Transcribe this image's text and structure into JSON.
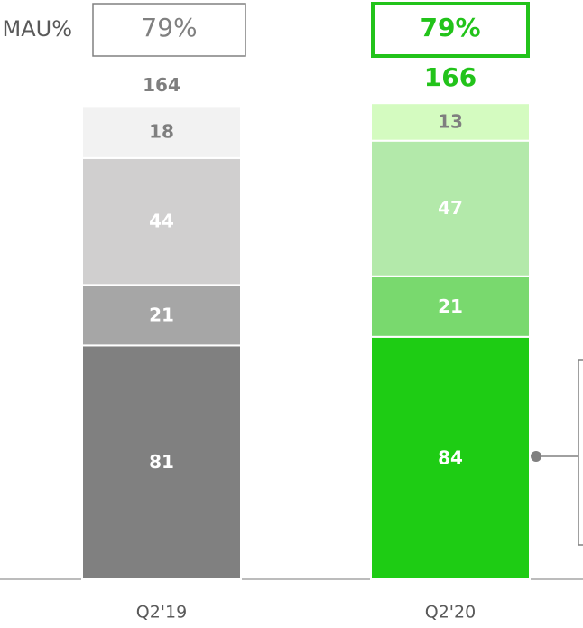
{
  "chart_data": {
    "type": "stacked_bar",
    "categories": [
      "Q2'19",
      "Q2'20"
    ],
    "series": [
      {
        "colors": [
          "#808080",
          "#1ecc14"
        ],
        "label_colors": [
          "#ffffff",
          "#ffffff"
        ],
        "values": [
          81,
          84
        ]
      },
      {
        "colors": [
          "#a6a6a6",
          "#79d96e"
        ],
        "label_colors": [
          "#ffffff",
          "#ffffff"
        ],
        "values": [
          21,
          21
        ]
      },
      {
        "colors": [
          "#d0cfcf",
          "#b3e9aa"
        ],
        "label_colors": [
          "#ffffff",
          "#ffffff"
        ],
        "values": [
          44,
          47
        ]
      },
      {
        "colors": [
          "#f2f2f2",
          "#d4fbc0"
        ],
        "label_colors": [
          "#7f7f7f",
          "#7f7f7f"
        ],
        "values": [
          18,
          13
        ]
      }
    ],
    "totals": [
      164,
      166
    ],
    "total_colors": [
      "#7f7f7f",
      "#22c31a"
    ],
    "mau_label": "MAU%",
    "mau_values": [
      79,
      79
    ],
    "mau_value_labels": [
      "79%",
      "79%"
    ]
  }
}
